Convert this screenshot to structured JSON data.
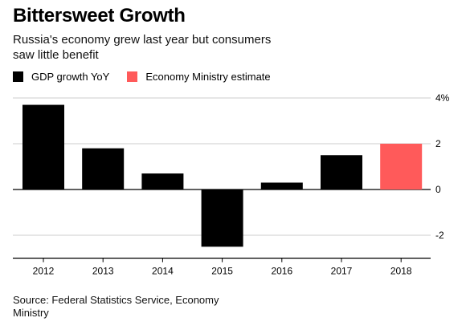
{
  "header": {
    "title": "Bittersweet Growth",
    "subtitle": "Russia's economy grew last year but consumers saw little benefit"
  },
  "legend": {
    "items": [
      {
        "label": "GDP growth YoY",
        "color": "#000000"
      },
      {
        "label": "Economy Ministry estimate",
        "color": "#ff5a5a"
      }
    ]
  },
  "source": "Source: Federal Statistics Service, Economy Ministry",
  "chart_data": {
    "type": "bar",
    "categories": [
      "2012",
      "2013",
      "2014",
      "2015",
      "2016",
      "2017",
      "2018"
    ],
    "series": [
      {
        "name": "GDP growth YoY",
        "values": [
          3.7,
          1.8,
          0.7,
          -2.5,
          0.3,
          1.5,
          null
        ],
        "color": "#000000"
      },
      {
        "name": "Economy Ministry estimate",
        "values": [
          null,
          null,
          null,
          null,
          null,
          null,
          2.0
        ],
        "color": "#ff5a5a"
      }
    ],
    "ylim": [
      -3,
      4
    ],
    "yticks": [
      4,
      2,
      0,
      -2
    ],
    "ytick_labels": [
      "4%",
      "2",
      "0",
      "-2"
    ],
    "grid": true,
    "xlabel": "",
    "ylabel": ""
  }
}
